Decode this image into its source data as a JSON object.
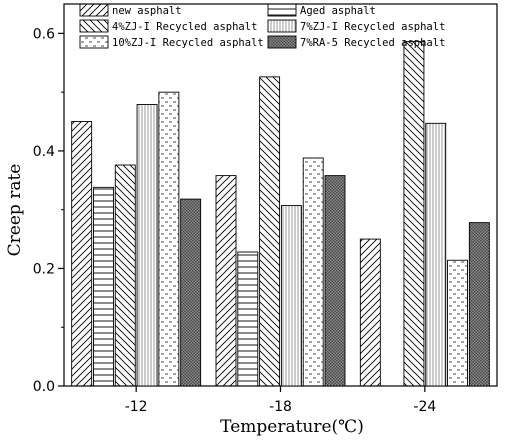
{
  "chart_data": {
    "type": "bar",
    "title": "",
    "xlabel": "Temperature(℃)",
    "ylabel": "Creep rate",
    "categories": [
      "-12",
      "-18",
      "-24"
    ],
    "ylim": [
      0.0,
      0.65
    ],
    "yticks": [
      "0.0",
      "0.2",
      "0.4",
      "0.6"
    ],
    "grid": false,
    "legend_position": "top, inside plot, two columns",
    "series": [
      {
        "name": "new asphalt",
        "pattern": "diagonal-up",
        "color": "#000000",
        "values": [
          0.45,
          0.358,
          0.25
        ]
      },
      {
        "name": "Aged asphalt",
        "pattern": "horizontal",
        "color": "#000000",
        "values": [
          0.338,
          0.228,
          null
        ]
      },
      {
        "name": "4%ZJ-I Recycled asphalt",
        "pattern": "diagonal-down",
        "color": "#000000",
        "values": [
          0.376,
          0.526,
          0.586
        ]
      },
      {
        "name": "7%ZJ-I Recycled asphalt",
        "pattern": "vertical-light",
        "color": "#888888",
        "values": [
          0.479,
          0.307,
          0.447
        ]
      },
      {
        "name": "10%ZJ-I Recycled asphalt",
        "pattern": "dashes",
        "color": "#555555",
        "values": [
          0.5,
          0.388,
          0.214
        ]
      },
      {
        "name": "7%RA-5 Recycled asphalt",
        "pattern": "dense-grid",
        "color": "#555555",
        "values": [
          0.318,
          0.358,
          0.278
        ]
      }
    ]
  }
}
